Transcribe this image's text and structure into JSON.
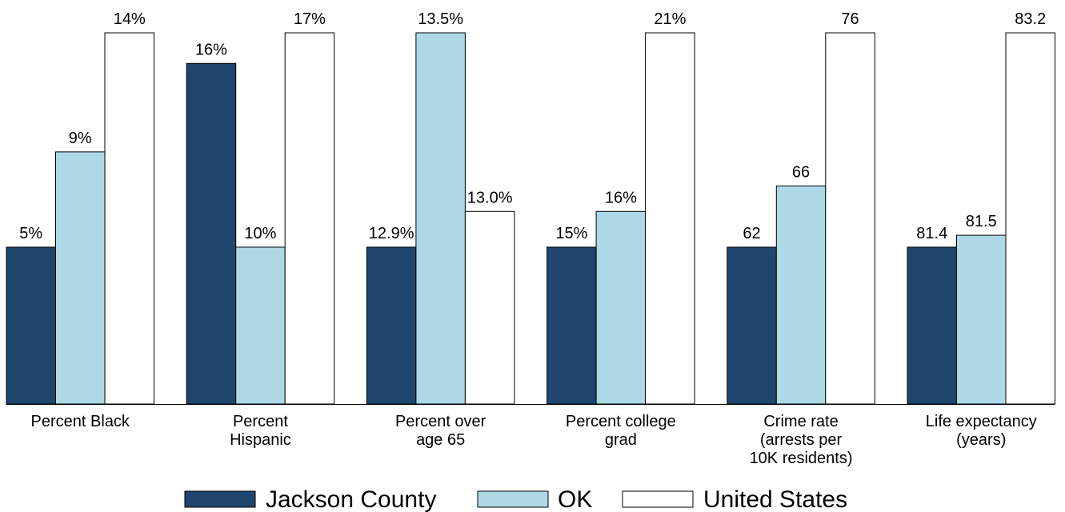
{
  "chart_data": {
    "type": "bar",
    "layout": "grouped",
    "normalization": "each category normalized to its max value",
    "categories": [
      [
        "Percent Black"
      ],
      [
        "Percent",
        "Hispanic"
      ],
      [
        "Percent over",
        "age 65"
      ],
      [
        "Percent college",
        "grad"
      ],
      [
        "Crime rate",
        "(arrests per",
        "10K residents)"
      ],
      [
        "Life expectancy",
        "(years)"
      ]
    ],
    "series": [
      {
        "name": "Jackson County",
        "color": "#1f466c",
        "values": [
          5,
          16,
          12.9,
          15,
          62,
          81.4
        ],
        "labels": [
          "5%",
          "16%",
          "12.9%",
          "15%",
          "62",
          "81.4"
        ]
      },
      {
        "name": "OK",
        "color": "#add8e6",
        "values": [
          9,
          10,
          13.5,
          16,
          66,
          81.5
        ],
        "labels": [
          "9%",
          "10%",
          "13.5%",
          "16%",
          "66",
          "81.5"
        ]
      },
      {
        "name": "United States",
        "color": "#ffffff",
        "values": [
          14,
          17,
          13.0,
          21,
          76,
          83.2
        ],
        "labels": [
          "14%",
          "17%",
          "13.0%",
          "21%",
          "76",
          "83.2"
        ]
      }
    ],
    "axis_baseline": {
      "note": "bars share baseline; minimum value drawn at fixed level",
      "min_fraction": 0.4225
    },
    "legend_position": "bottom-center",
    "grid": false
  }
}
